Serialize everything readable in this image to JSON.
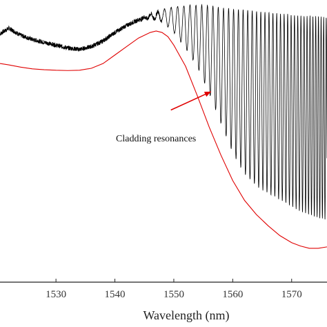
{
  "chart_data": {
    "type": "line",
    "title": "",
    "xlabel": "Wavelength (nm)",
    "ylabel": "",
    "xlim": [
      1520.5,
      1576
    ],
    "ylim": [
      0,
      100
    ],
    "grid": false,
    "x_ticks": [
      1530,
      1540,
      1550,
      1560,
      1570
    ],
    "colors": {
      "black_trace": "#000000",
      "red_trace": "#e00000",
      "arrow": "#e00000",
      "axes": "#222222"
    },
    "series": [
      {
        "color": "#000000",
        "description_points": [
          [
            1520.5,
            88.0
          ],
          [
            1522,
            90.0
          ],
          [
            1524,
            87.5
          ],
          [
            1526,
            86.0
          ],
          [
            1528,
            85.0
          ],
          [
            1530,
            84.0
          ],
          [
            1532,
            83.0
          ],
          [
            1534,
            82.5
          ],
          [
            1536,
            83.5
          ],
          [
            1538,
            85.5
          ],
          [
            1540,
            88.5
          ],
          [
            1542,
            91.0
          ],
          [
            1544,
            93.0
          ],
          [
            1546,
            95.0
          ],
          [
            1548,
            96.5
          ],
          [
            1550,
            97.5
          ],
          [
            1552,
            98.0
          ],
          [
            1554,
            98.3
          ],
          [
            1556,
            98.0
          ],
          [
            1558,
            97.3
          ],
          [
            1560,
            96.8
          ],
          [
            1562,
            96.5
          ],
          [
            1564,
            96.0
          ],
          [
            1566,
            95.6
          ],
          [
            1568,
            95.2
          ],
          [
            1570,
            94.8
          ],
          [
            1572,
            94.5
          ],
          [
            1574,
            94.2
          ],
          [
            1576,
            94.0
          ]
        ],
        "oscillation_depth": [
          [
            1544,
            0
          ],
          [
            1546,
            1.5
          ],
          [
            1548,
            4
          ],
          [
            1550,
            9
          ],
          [
            1552,
            15
          ],
          [
            1554,
            22
          ],
          [
            1556,
            31
          ],
          [
            1558,
            41
          ],
          [
            1560,
            51
          ],
          [
            1562,
            58
          ],
          [
            1564,
            62
          ],
          [
            1566,
            64
          ],
          [
            1568,
            66
          ],
          [
            1570,
            68
          ],
          [
            1572,
            70
          ],
          [
            1574,
            71
          ],
          [
            1576,
            72
          ]
        ]
      },
      {
        "color": "#e00000",
        "points": [
          [
            1520.5,
            77.5
          ],
          [
            1522,
            77.0
          ],
          [
            1524,
            76.2
          ],
          [
            1526,
            75.6
          ],
          [
            1528,
            75.3
          ],
          [
            1530,
            75.1
          ],
          [
            1532,
            75.0
          ],
          [
            1534,
            75.1
          ],
          [
            1536,
            75.8
          ],
          [
            1538,
            77.5
          ],
          [
            1540,
            80.5
          ],
          [
            1542,
            83.5
          ],
          [
            1544,
            86.5
          ],
          [
            1546,
            88.5
          ],
          [
            1547,
            89.0
          ],
          [
            1548,
            88.5
          ],
          [
            1549,
            87.0
          ],
          [
            1550,
            84.0
          ],
          [
            1552,
            76.5
          ],
          [
            1554,
            66.0
          ],
          [
            1556,
            55.0
          ],
          [
            1558,
            45.0
          ],
          [
            1560,
            36.0
          ],
          [
            1562,
            29.0
          ],
          [
            1564,
            24.0
          ],
          [
            1566,
            20.0
          ],
          [
            1568,
            16.5
          ],
          [
            1570,
            14.0
          ],
          [
            1571.5,
            12.8
          ],
          [
            1573,
            12.0
          ],
          [
            1574.5,
            12.0
          ],
          [
            1576,
            12.5
          ]
        ]
      }
    ],
    "annotation": {
      "text": "Cladding resonances",
      "arrow_from": [
        1549.5,
        61.0
      ],
      "arrow_to": [
        1556.3,
        67.5
      ]
    }
  }
}
